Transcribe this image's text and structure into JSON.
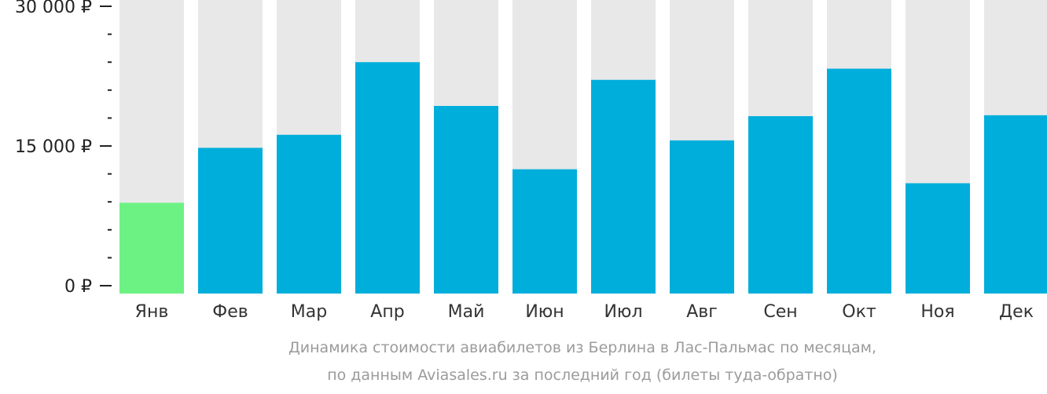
{
  "chart_data": {
    "type": "bar",
    "categories": [
      "Янв",
      "Фев",
      "Мар",
      "Апр",
      "Май",
      "Июн",
      "Июл",
      "Авг",
      "Сен",
      "Окт",
      "Ноя",
      "Дек"
    ],
    "values": [
      8900,
      14800,
      16200,
      24000,
      19300,
      12500,
      22100,
      15600,
      18200,
      23300,
      11000,
      18300
    ],
    "ylim": [
      0,
      30000
    ],
    "yticks": [
      {
        "value": 0,
        "label": "0 ₽"
      },
      {
        "value": 15000,
        "label": "15 000 ₽"
      },
      {
        "value": 30000,
        "label": "30 000 ₽"
      }
    ],
    "minor_tick_step": 3000,
    "highlight_index": 0,
    "colors": {
      "bar": "#00aedb",
      "highlight": "#6cf283",
      "background_bar": "#e8e8e8",
      "axis": "#222222"
    },
    "grid": false,
    "legend": "none"
  },
  "caption": {
    "line1": "Динамика стоимости авиабилетов из Берлина в Лас-Пальмас по месяцам,",
    "line2": "по данным Aviasales.ru за последний год (билеты туда-обратно)"
  }
}
